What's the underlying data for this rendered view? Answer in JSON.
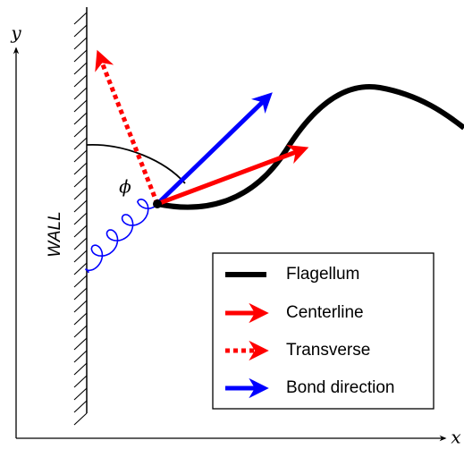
{
  "axes": {
    "y_label": "y",
    "x_label": "x"
  },
  "wall_label": "WALL",
  "angle_label": "ϕ",
  "legend": {
    "items": [
      {
        "label": "Flagellum"
      },
      {
        "label": "Centerline"
      },
      {
        "label": "Transverse"
      },
      {
        "label": "Bond direction"
      }
    ]
  }
}
